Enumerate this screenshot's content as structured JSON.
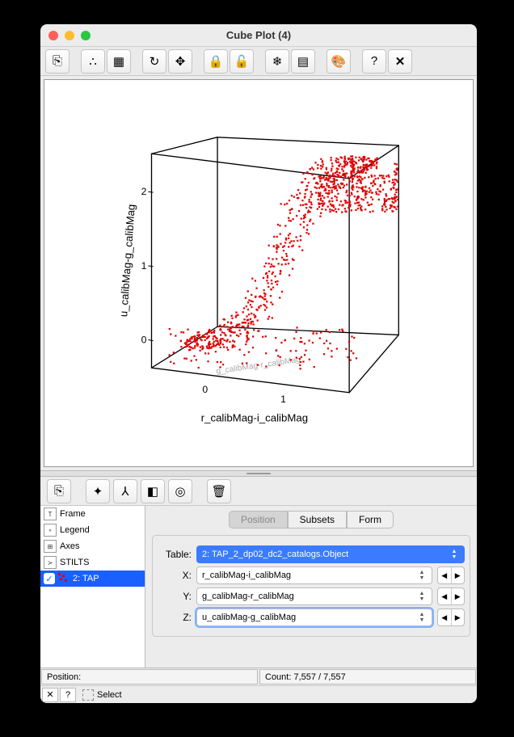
{
  "window": {
    "title": "Cube Plot (4)"
  },
  "traffic_colors": {
    "close": "#ff5f57",
    "min": "#febc2e",
    "max": "#28c840"
  },
  "toolbar_icons": [
    "⎘",
    "∴",
    "▦",
    "↻",
    "✥",
    "🔒",
    "🔓",
    "❄",
    "▤",
    "🎨",
    "?",
    "✕"
  ],
  "plot": {
    "x_label": "r_calibMag-i_calibMag",
    "y_label": "g_calibMag-r_calibMag",
    "z_label": "u_calibMag-g_calibMag",
    "x_ticks": [
      "0",
      "1"
    ],
    "z_ticks": [
      "0",
      "1",
      "2"
    ],
    "point_color": "#e00000",
    "cube_color": "#000000",
    "bg": "#ffffff"
  },
  "lower_toolbar_icons": [
    "⎘",
    "✦",
    "⅄",
    "◧",
    "◎",
    "🗑"
  ],
  "tree": {
    "frame": "Frame",
    "legend": "Legend",
    "axes": "Axes",
    "stilts": "STILTS",
    "layer": "2: TAP"
  },
  "tabs": {
    "position": "Position",
    "subsets": "Subsets",
    "form": "Form"
  },
  "fields": {
    "table_label": "Table:",
    "table_value": "2: TAP_2_dp02_dc2_catalogs.Object",
    "x_label": "X:",
    "x_value": "r_calibMag-i_calibMag",
    "y_label": "Y:",
    "y_value": "g_calibMag-r_calibMag",
    "z_label": "Z:",
    "z_value": "u_calibMag-g_calibMag"
  },
  "status": {
    "position_label": "Position:",
    "count_label": "Count: 7,557 / 7,557"
  },
  "bottom": {
    "select_label": "Select"
  }
}
